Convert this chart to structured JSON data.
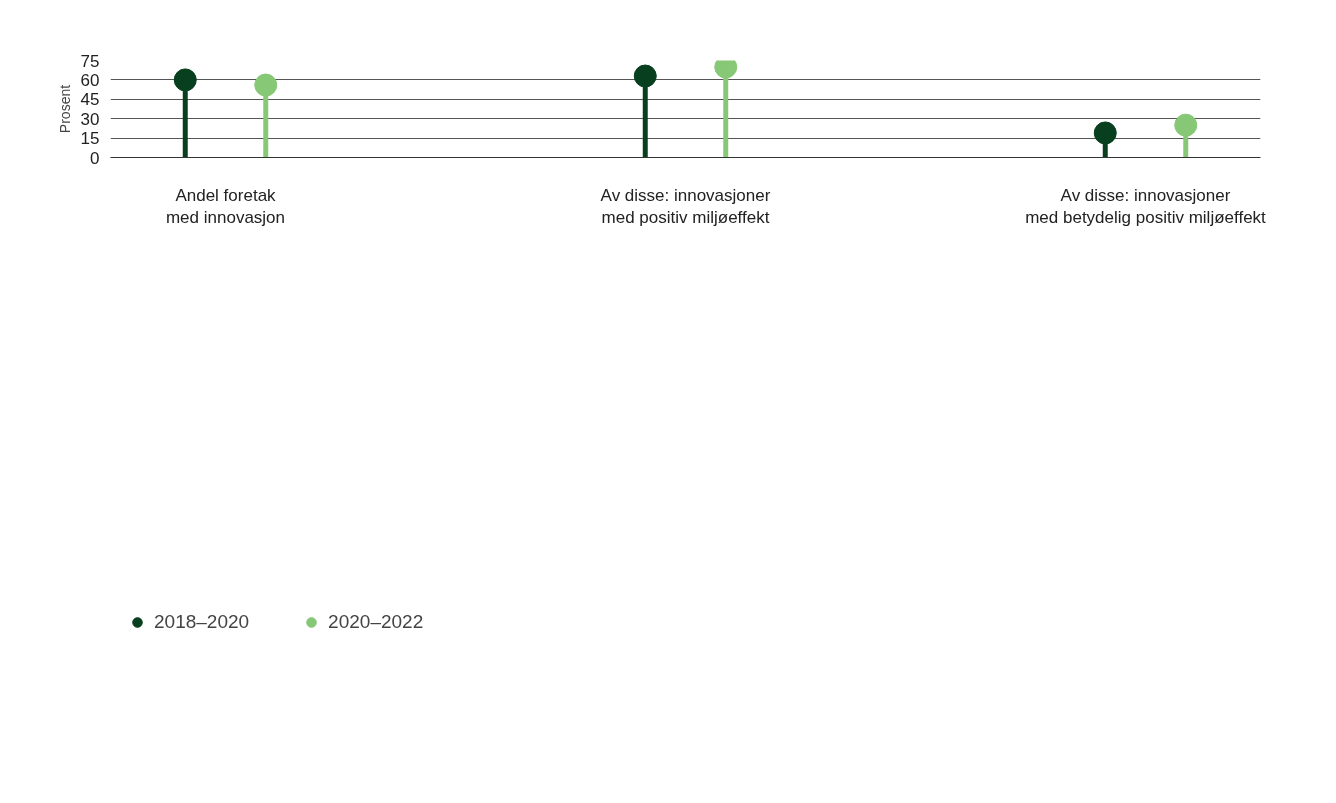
{
  "chart_data": {
    "type": "lollipop",
    "ylabel": "Prosent",
    "categories": [
      "Andel foretak\nmed innovasjon",
      "Av disse: innovasjoner\nmed positiv miljøeffekt",
      "Av disse: innovasjoner\nmed betydelig positiv miljøeffekt"
    ],
    "series": [
      {
        "name": "2018–2020",
        "color": "#08401f",
        "values": [
          60,
          63,
          19
        ]
      },
      {
        "name": "2020–2022",
        "color": "#86c876",
        "values": [
          56,
          70,
          25
        ]
      }
    ],
    "ylim": [
      0,
      75
    ],
    "yticks": [
      0,
      15,
      30,
      45,
      60,
      75
    ],
    "grid": "y",
    "legend": "bottom left",
    "marker": "circle"
  }
}
